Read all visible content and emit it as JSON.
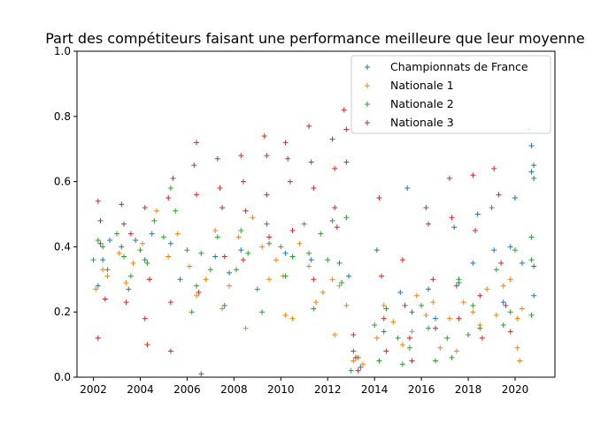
{
  "chart_data": {
    "type": "scatter",
    "title": "Part des compétiteurs faisant une performance meilleure que leur moyenne",
    "xlabel": "",
    "ylabel": "",
    "xlim": [
      2001.3,
      2021.7
    ],
    "ylim": [
      0,
      1
    ],
    "x_ticks": [
      2002,
      2004,
      2006,
      2008,
      2010,
      2012,
      2014,
      2016,
      2018,
      2020
    ],
    "y_ticks": [
      0.0,
      0.2,
      0.4,
      0.6,
      0.8,
      1.0
    ],
    "marker": "+",
    "grid": false,
    "legend_position": "top-right",
    "series": [
      {
        "name": "Championnats de France",
        "color": "#1f77b4",
        "points": [
          [
            2002.2,
            0.28
          ],
          [
            2002.4,
            0.36
          ],
          [
            2002.7,
            0.42
          ],
          [
            2003.2,
            0.4
          ],
          [
            2003.5,
            0.27
          ],
          [
            2003.8,
            0.42
          ],
          [
            2004.2,
            0.36
          ],
          [
            2004.5,
            0.44
          ],
          [
            2005.3,
            0.41
          ],
          [
            2005.7,
            0.3
          ],
          [
            2006.6,
            0.01
          ],
          [
            2007.2,
            0.37
          ],
          [
            2007.8,
            0.32
          ],
          [
            2008.3,
            0.39
          ],
          [
            2009.4,
            0.47
          ],
          [
            2010.2,
            0.38
          ],
          [
            2011.3,
            0.36
          ],
          [
            2012.5,
            0.35
          ],
          [
            2012.9,
            0.31
          ],
          [
            2013.1,
            0.08
          ],
          [
            2013.4,
            0.03
          ],
          [
            2014.1,
            0.39
          ],
          [
            2014.4,
            0.14
          ],
          [
            2015.1,
            0.26
          ],
          [
            2015.4,
            0.58
          ],
          [
            2015.6,
            0.2
          ],
          [
            2016.3,
            0.27
          ],
          [
            2016.6,
            0.18
          ],
          [
            2017.4,
            0.46
          ],
          [
            2017.6,
            0.29
          ],
          [
            2018.2,
            0.35
          ],
          [
            2018.4,
            0.5
          ],
          [
            2019.1,
            0.39
          ],
          [
            2019.5,
            0.23
          ],
          [
            2019.8,
            0.4
          ],
          [
            2020.0,
            0.55
          ],
          [
            2020.3,
            0.35
          ],
          [
            2020.7,
            0.71
          ],
          [
            2020.7,
            0.63
          ],
          [
            2020.8,
            0.61
          ],
          [
            2020.8,
            0.65
          ],
          [
            2020.8,
            0.34
          ],
          [
            2020.8,
            0.25
          ],
          [
            2020.6,
            0.76
          ]
        ]
      },
      {
        "name": "Nationale 1",
        "color": "#ff7f0e",
        "points": [
          [
            2002.1,
            0.27
          ],
          [
            2002.4,
            0.33
          ],
          [
            2002.6,
            0.31
          ],
          [
            2003.1,
            0.38
          ],
          [
            2003.4,
            0.29
          ],
          [
            2003.7,
            0.35
          ],
          [
            2004.1,
            0.41
          ],
          [
            2004.4,
            0.3
          ],
          [
            2004.7,
            0.51
          ],
          [
            2005.2,
            0.37
          ],
          [
            2005.6,
            0.44
          ],
          [
            2006.1,
            0.34
          ],
          [
            2006.4,
            0.25
          ],
          [
            2006.8,
            0.3
          ],
          [
            2007.2,
            0.45
          ],
          [
            2007.5,
            0.21
          ],
          [
            2007.8,
            0.28
          ],
          [
            2008.2,
            0.43
          ],
          [
            2008.5,
            0.15
          ],
          [
            2008.8,
            0.49
          ],
          [
            2009.2,
            0.4
          ],
          [
            2009.5,
            0.3
          ],
          [
            2009.8,
            0.36
          ],
          [
            2010.1,
            0.31
          ],
          [
            2010.2,
            0.19
          ],
          [
            2010.5,
            0.18
          ],
          [
            2010.8,
            0.41
          ],
          [
            2011.2,
            0.34
          ],
          [
            2011.5,
            0.23
          ],
          [
            2011.8,
            0.26
          ],
          [
            2012.2,
            0.3
          ],
          [
            2012.3,
            0.13
          ],
          [
            2012.5,
            0.28
          ],
          [
            2012.8,
            0.22
          ],
          [
            2013.1,
            0.05
          ],
          [
            2013.5,
            0.04
          ],
          [
            2014.1,
            0.12
          ],
          [
            2014.4,
            0.22
          ],
          [
            2014.8,
            0.17
          ],
          [
            2015.2,
            0.1
          ],
          [
            2015.6,
            0.14
          ],
          [
            2015.8,
            0.25
          ],
          [
            2016.2,
            0.19
          ],
          [
            2016.5,
            0.23
          ],
          [
            2016.8,
            0.09
          ],
          [
            2017.2,
            0.18
          ],
          [
            2017.5,
            0.08
          ],
          [
            2017.8,
            0.23
          ],
          [
            2018.2,
            0.2
          ],
          [
            2018.5,
            0.16
          ],
          [
            2018.8,
            0.27
          ],
          [
            2019.2,
            0.19
          ],
          [
            2019.5,
            0.28
          ],
          [
            2019.8,
            0.3
          ],
          [
            2020.1,
            0.18
          ],
          [
            2020.1,
            0.09
          ],
          [
            2020.2,
            0.05
          ],
          [
            2020.3,
            0.21
          ]
        ]
      },
      {
        "name": "Nationale 2",
        "color": "#2ca02c",
        "points": [
          [
            2002.0,
            0.36
          ],
          [
            2002.2,
            0.42
          ],
          [
            2002.4,
            0.4
          ],
          [
            2002.6,
            0.33
          ],
          [
            2003.0,
            0.44
          ],
          [
            2003.3,
            0.37
          ],
          [
            2003.6,
            0.31
          ],
          [
            2004.0,
            0.39
          ],
          [
            2004.3,
            0.35
          ],
          [
            2004.6,
            0.48
          ],
          [
            2005.0,
            0.43
          ],
          [
            2005.3,
            0.58
          ],
          [
            2005.5,
            0.51
          ],
          [
            2006.0,
            0.39
          ],
          [
            2006.2,
            0.2
          ],
          [
            2006.4,
            0.28
          ],
          [
            2006.6,
            0.38
          ],
          [
            2007.0,
            0.33
          ],
          [
            2007.3,
            0.43
          ],
          [
            2007.6,
            0.22
          ],
          [
            2008.1,
            0.33
          ],
          [
            2008.3,
            0.45
          ],
          [
            2008.6,
            0.38
          ],
          [
            2009.0,
            0.27
          ],
          [
            2009.2,
            0.2
          ],
          [
            2009.5,
            0.41
          ],
          [
            2010.0,
            0.4
          ],
          [
            2010.2,
            0.31
          ],
          [
            2010.5,
            0.37
          ],
          [
            2011.0,
            0.47
          ],
          [
            2011.2,
            0.38
          ],
          [
            2011.4,
            0.21
          ],
          [
            2011.7,
            0.44
          ],
          [
            2012.0,
            0.36
          ],
          [
            2012.2,
            0.48
          ],
          [
            2012.6,
            0.29
          ],
          [
            2012.8,
            0.49
          ],
          [
            2013.0,
            0.02
          ],
          [
            2013.3,
            0.06
          ],
          [
            2014.0,
            0.16
          ],
          [
            2014.2,
            0.05
          ],
          [
            2014.5,
            0.21
          ],
          [
            2015.0,
            0.12
          ],
          [
            2015.2,
            0.04
          ],
          [
            2015.5,
            0.09
          ],
          [
            2016.0,
            0.22
          ],
          [
            2016.3,
            0.15
          ],
          [
            2016.6,
            0.05
          ],
          [
            2017.1,
            0.12
          ],
          [
            2017.3,
            0.06
          ],
          [
            2017.6,
            0.3
          ],
          [
            2018.0,
            0.13
          ],
          [
            2018.2,
            0.22
          ],
          [
            2018.5,
            0.15
          ],
          [
            2019.0,
            0.52
          ],
          [
            2019.2,
            0.33
          ],
          [
            2019.5,
            0.16
          ],
          [
            2019.8,
            0.2
          ],
          [
            2020.0,
            0.39
          ],
          [
            2020.7,
            0.43
          ],
          [
            2020.7,
            0.36
          ],
          [
            2020.7,
            0.19
          ]
        ]
      },
      {
        "name": "Nationale 3",
        "color": "#d62728",
        "points": [
          [
            2002.2,
            0.54
          ],
          [
            2002.3,
            0.48
          ],
          [
            2002.3,
            0.41
          ],
          [
            2002.2,
            0.12
          ],
          [
            2002.5,
            0.24
          ],
          [
            2003.2,
            0.53
          ],
          [
            2003.3,
            0.47
          ],
          [
            2003.4,
            0.23
          ],
          [
            2003.6,
            0.44
          ],
          [
            2004.2,
            0.52
          ],
          [
            2004.2,
            0.18
          ],
          [
            2004.3,
            0.1
          ],
          [
            2004.4,
            0.3
          ],
          [
            2005.2,
            0.55
          ],
          [
            2005.3,
            0.23
          ],
          [
            2005.3,
            0.08
          ],
          [
            2005.4,
            0.61
          ],
          [
            2006.3,
            0.65
          ],
          [
            2006.4,
            0.72
          ],
          [
            2006.4,
            0.56
          ],
          [
            2006.5,
            0.26
          ],
          [
            2007.3,
            0.67
          ],
          [
            2007.4,
            0.58
          ],
          [
            2007.5,
            0.52
          ],
          [
            2007.6,
            0.37
          ],
          [
            2008.3,
            0.68
          ],
          [
            2008.4,
            0.6
          ],
          [
            2008.5,
            0.51
          ],
          [
            2008.4,
            0.36
          ],
          [
            2009.3,
            0.74
          ],
          [
            2009.4,
            0.68
          ],
          [
            2009.4,
            0.56
          ],
          [
            2009.5,
            0.43
          ],
          [
            2010.2,
            0.72
          ],
          [
            2010.3,
            0.67
          ],
          [
            2010.4,
            0.6
          ],
          [
            2010.5,
            0.45
          ],
          [
            2011.2,
            0.77
          ],
          [
            2011.3,
            0.66
          ],
          [
            2011.4,
            0.58
          ],
          [
            2011.4,
            0.3
          ],
          [
            2012.2,
            0.73
          ],
          [
            2012.3,
            0.64
          ],
          [
            2012.3,
            0.52
          ],
          [
            2012.4,
            0.46
          ],
          [
            2012.7,
            0.82
          ],
          [
            2012.8,
            0.76
          ],
          [
            2012.8,
            0.66
          ],
          [
            2013.1,
            0.13
          ],
          [
            2013.2,
            0.06
          ],
          [
            2013.3,
            0.02
          ],
          [
            2014.2,
            0.55
          ],
          [
            2014.3,
            0.31
          ],
          [
            2014.4,
            0.18
          ],
          [
            2014.5,
            0.08
          ],
          [
            2015.2,
            0.36
          ],
          [
            2015.3,
            0.22
          ],
          [
            2015.5,
            0.12
          ],
          [
            2015.6,
            0.05
          ],
          [
            2016.2,
            0.52
          ],
          [
            2016.3,
            0.47
          ],
          [
            2016.5,
            0.3
          ],
          [
            2016.6,
            0.15
          ],
          [
            2017.2,
            0.61
          ],
          [
            2017.3,
            0.49
          ],
          [
            2017.5,
            0.28
          ],
          [
            2017.6,
            0.18
          ],
          [
            2018.2,
            0.62
          ],
          [
            2018.3,
            0.45
          ],
          [
            2018.5,
            0.25
          ],
          [
            2018.6,
            0.12
          ],
          [
            2019.1,
            0.64
          ],
          [
            2019.3,
            0.56
          ],
          [
            2019.4,
            0.35
          ],
          [
            2019.6,
            0.22
          ],
          [
            2019.8,
            0.14
          ]
        ]
      }
    ]
  }
}
